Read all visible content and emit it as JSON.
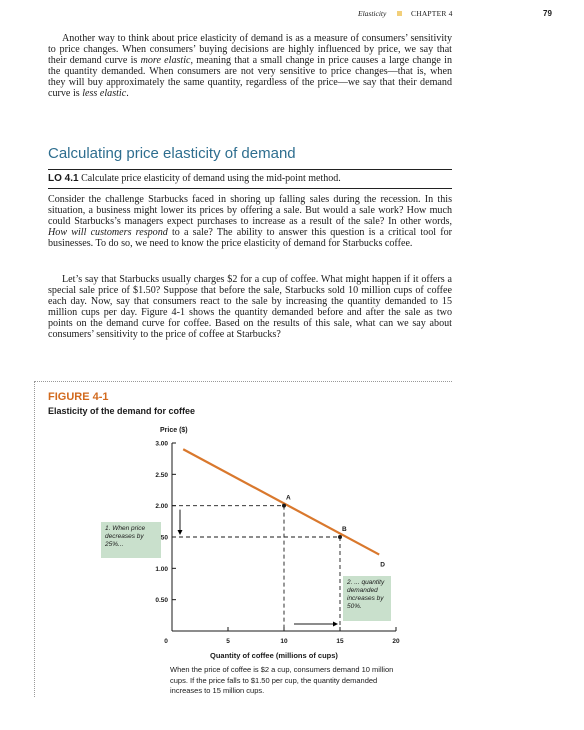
{
  "running_head": {
    "section": "Elasticity",
    "chapter": "CHAPTER 4",
    "page_number": "79"
  },
  "intro_paragraph": {
    "start": "Another way to think about price elasticity of demand is as a measure of consumers’ sensitivity to price changes. When consumers’ buying decisions are highly influenced by price, we say that their demand curve is ",
    "em1": "more elastic",
    "middle": ", meaning that a small change in price causes a large change in the quantity demanded. When consumers are not very sensitive to price changes—that is, when they will buy approximately the same quantity, regardless of the price—we say that their demand curve is ",
    "em2": "less elastic",
    "end": "."
  },
  "section_heading": "Calculating price elasticity of demand",
  "learning_objective": {
    "tag": "LO 4.1",
    "text": "Calculate price elasticity of demand using the mid-point method."
  },
  "paragraph_2": {
    "start": "Consider the challenge Starbucks faced in shoring up falling sales during the recession. In this situation, a business might lower its prices by offering a sale. But would a sale work? How much could Starbucks’s managers expect purchases to increase as a result of the sale? In other words, ",
    "em": "How will customers respond",
    "end": " to a sale? The ability to answer this question is a critical tool for businesses. To do so, we need to know the price elasticity of demand for Starbucks coffee."
  },
  "paragraph_3": "Let’s say that Starbucks usually charges $2 for a cup of coffee. What might happen if it offers a special sale price of $1.50? Suppose that before the sale, Starbucks sold 10 million cups of coffee each day. Now, say that consumers react to the sale by increasing the quantity demanded to 15 million cups per day. Figure 4-1 shows the quantity demanded before and after the sale as two points on the demand curve for coffee. Based on the results of this sale, what can we say about consumers’ sensitivity to the price of coffee at Starbucks?",
  "figure": {
    "label": "FIGURE 4-1",
    "title": "Elasticity of the demand for coffee",
    "caption": "When the price of coffee is $2 a cup, consumers demand 10 million cups. If the price falls to $1.50 per cup, the quantity demanded increases to 15 million cups.",
    "annotation_price": "1. When price decreases by 25%...",
    "annotation_quantity": "2. ... quantity demanded increases by 50%.",
    "colors": {
      "curve": "#d9782d",
      "annotation_bg": "#c9e0cc",
      "figure_label": "#d26a1e",
      "heading": "#2e6e8f"
    }
  },
  "chart_data": {
    "type": "line",
    "xlabel": "Quantity of coffee (millions of cups)",
    "ylabel": "Price ($)",
    "xlim": [
      0,
      20
    ],
    "ylim": [
      0,
      3.0
    ],
    "x_ticks": [
      "0",
      "5",
      "10",
      "15",
      "20"
    ],
    "y_ticks": [
      "0.50",
      "1.00",
      "1.50",
      "2.00",
      "2.50",
      "3.00"
    ],
    "series": [
      {
        "name": "D",
        "x": [
          1,
          18.5
        ],
        "y": [
          2.9,
          1.22
        ]
      }
    ],
    "points": [
      {
        "label": "A",
        "x": 10,
        "y": 2.0
      },
      {
        "label": "B",
        "x": 15,
        "y": 1.5
      }
    ],
    "grid": false
  }
}
